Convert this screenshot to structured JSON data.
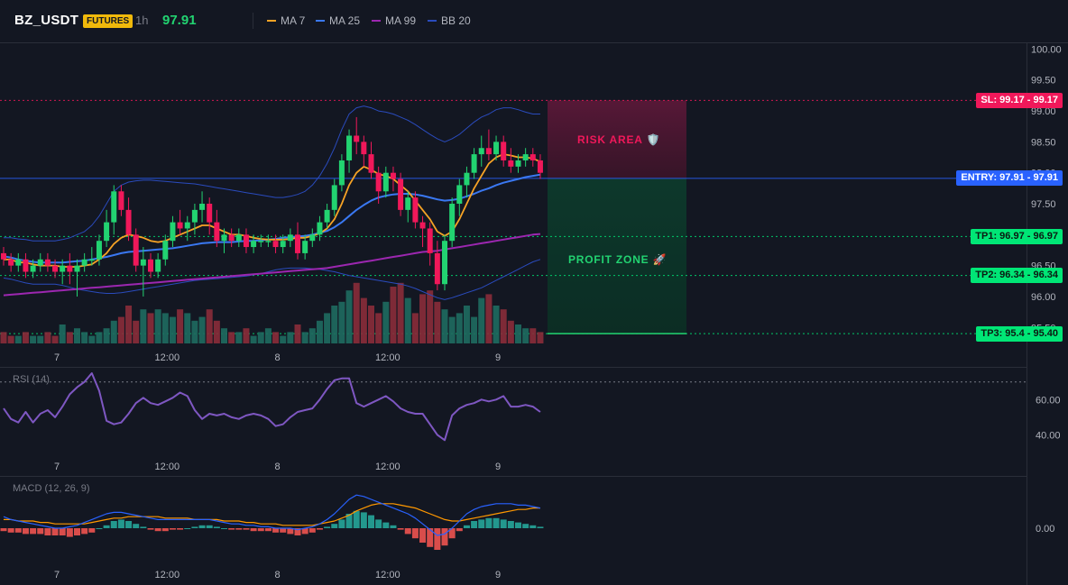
{
  "header": {
    "symbol": "BZ_USDT",
    "badge": "FUTURES",
    "timeframe": "1h",
    "price": "97.91",
    "legend": [
      {
        "label": "MA 7",
        "color": "#f7a325"
      },
      {
        "label": "MA 25",
        "color": "#3a78f2"
      },
      {
        "label": "MA 99",
        "color": "#9c27b0"
      },
      {
        "label": "BB 20",
        "color": "#2a4bbd"
      }
    ]
  },
  "price_axis": {
    "ticks": [
      "100.00",
      "99.50",
      "99.00",
      "98.50",
      "98.00",
      "97.50",
      "97.00",
      "96.50",
      "96.00",
      "95.50"
    ]
  },
  "time_axis": {
    "ticks": [
      "7",
      "12:00",
      "8",
      "12:00",
      "9"
    ]
  },
  "levels": {
    "sl": {
      "tag": "SL: 99.17 - 99.17",
      "value": 99.17,
      "color": "#f0185a"
    },
    "entry": {
      "tag": "ENTRY: 97.91 - 97.91",
      "value": 97.91,
      "color": "#2962ff"
    },
    "tp1": {
      "tag": "TP1: 96.97 - 96.97",
      "value": 96.97,
      "color": "#00e676"
    },
    "tp2": {
      "tag": "TP2: 96.34 - 96.34",
      "value": 96.34,
      "color": "#00e676"
    },
    "tp3": {
      "tag": "TP3: 95.4 - 95.40",
      "value": 95.4,
      "color": "#00e676"
    }
  },
  "zones": {
    "risk_label": "RISK AREA 🛡️",
    "profit_label": "PROFIT ZONE 🚀"
  },
  "rsi": {
    "label": "RSI (14)",
    "ticks": [
      "60.00",
      "40.00"
    ],
    "overbought": 70
  },
  "macd": {
    "label": "MACD (12, 26, 9)",
    "ticks": [
      "0.00"
    ]
  },
  "colors": {
    "up": "#22d371",
    "down": "#f0185a",
    "vol_up": "#1f6b60",
    "vol_down": "#8b2c3a"
  },
  "chart_data": {
    "type": "candlestick",
    "title": "BZ_USDT",
    "ylim": [
      95.3,
      100.1
    ],
    "ohlc": [
      [
        96.7,
        96.8,
        96.5,
        96.6
      ],
      [
        96.6,
        96.7,
        96.4,
        96.5
      ],
      [
        96.5,
        96.7,
        96.4,
        96.6
      ],
      [
        96.6,
        96.7,
        96.3,
        96.4
      ],
      [
        96.4,
        96.6,
        96.3,
        96.5
      ],
      [
        96.5,
        96.7,
        96.4,
        96.6
      ],
      [
        96.6,
        96.7,
        96.4,
        96.5
      ],
      [
        96.5,
        96.6,
        96.3,
        96.4
      ],
      [
        96.4,
        96.6,
        96.2,
        96.5
      ],
      [
        96.5,
        96.7,
        96.2,
        96.4
      ],
      [
        96.4,
        96.6,
        96.0,
        96.5
      ],
      [
        96.5,
        96.7,
        96.4,
        96.6
      ],
      [
        96.6,
        96.8,
        96.5,
        96.6
      ],
      [
        96.6,
        97.0,
        96.5,
        96.9
      ],
      [
        96.9,
        97.4,
        96.8,
        97.2
      ],
      [
        97.2,
        97.8,
        97.0,
        97.7
      ],
      [
        97.7,
        97.8,
        97.3,
        97.4
      ],
      [
        97.4,
        97.6,
        96.9,
        97.0
      ],
      [
        97.0,
        97.1,
        96.4,
        96.5
      ],
      [
        96.5,
        96.8,
        96.0,
        96.6
      ],
      [
        96.6,
        96.7,
        96.3,
        96.4
      ],
      [
        96.4,
        96.7,
        96.3,
        96.6
      ],
      [
        96.6,
        97.0,
        96.5,
        96.9
      ],
      [
        96.9,
        97.3,
        96.8,
        97.2
      ],
      [
        97.2,
        97.4,
        97.0,
        97.1
      ],
      [
        97.1,
        97.3,
        96.9,
        97.2
      ],
      [
        97.2,
        97.5,
        97.0,
        97.4
      ],
      [
        97.4,
        97.7,
        97.2,
        97.5
      ],
      [
        97.5,
        97.6,
        97.0,
        97.2
      ],
      [
        97.2,
        97.4,
        96.8,
        96.9
      ],
      [
        96.9,
        97.1,
        96.7,
        97.0
      ],
      [
        97.0,
        97.1,
        96.8,
        96.9
      ],
      [
        96.9,
        97.1,
        96.8,
        97.0
      ],
      [
        97.0,
        97.1,
        96.7,
        96.8
      ],
      [
        96.8,
        97.0,
        96.7,
        96.9
      ],
      [
        96.9,
        97.0,
        96.8,
        96.9
      ],
      [
        96.9,
        97.0,
        96.8,
        96.9
      ],
      [
        96.9,
        97.0,
        96.7,
        96.8
      ],
      [
        96.8,
        97.0,
        96.7,
        96.9
      ],
      [
        96.9,
        97.1,
        96.8,
        97.0
      ],
      [
        97.0,
        97.2,
        96.6,
        96.7
      ],
      [
        96.7,
        97.0,
        96.6,
        96.9
      ],
      [
        96.9,
        97.1,
        96.8,
        97.0
      ],
      [
        97.0,
        97.3,
        96.9,
        97.2
      ],
      [
        97.2,
        97.5,
        97.1,
        97.4
      ],
      [
        97.4,
        97.9,
        97.3,
        97.8
      ],
      [
        97.8,
        98.3,
        97.7,
        98.2
      ],
      [
        98.2,
        98.7,
        98.0,
        98.6
      ],
      [
        98.6,
        98.9,
        98.3,
        98.5
      ],
      [
        98.5,
        98.6,
        98.1,
        98.3
      ],
      [
        98.3,
        98.5,
        97.9,
        98.0
      ],
      [
        98.0,
        98.1,
        97.5,
        97.7
      ],
      [
        97.7,
        98.1,
        97.6,
        98.0
      ],
      [
        98.0,
        98.1,
        97.7,
        97.9
      ],
      [
        97.9,
        98.0,
        97.3,
        97.4
      ],
      [
        97.4,
        97.7,
        97.2,
        97.6
      ],
      [
        97.6,
        97.7,
        97.1,
        97.2
      ],
      [
        97.2,
        97.3,
        96.8,
        97.1
      ],
      [
        97.1,
        97.2,
        96.5,
        96.7
      ],
      [
        96.7,
        96.9,
        96.1,
        96.2
      ],
      [
        96.2,
        97.0,
        96.1,
        96.9
      ],
      [
        96.9,
        97.6,
        96.8,
        97.5
      ],
      [
        97.5,
        97.9,
        97.3,
        97.8
      ],
      [
        97.8,
        98.1,
        97.6,
        98.0
      ],
      [
        98.0,
        98.4,
        97.9,
        98.3
      ],
      [
        98.3,
        98.6,
        98.1,
        98.4
      ],
      [
        98.4,
        98.7,
        98.2,
        98.3
      ],
      [
        98.3,
        98.6,
        98.2,
        98.5
      ],
      [
        98.5,
        98.6,
        98.1,
        98.2
      ],
      [
        98.2,
        98.4,
        98.0,
        98.1
      ],
      [
        98.1,
        98.3,
        98.0,
        98.2
      ],
      [
        98.2,
        98.4,
        98.1,
        98.3
      ],
      [
        98.3,
        98.4,
        98.1,
        98.2
      ],
      [
        98.2,
        98.3,
        97.9,
        98.0
      ]
    ],
    "volume": [
      3,
      2,
      2,
      3,
      2,
      2,
      3,
      2,
      5,
      3,
      4,
      3,
      2,
      3,
      4,
      6,
      7,
      10,
      6,
      9,
      8,
      9,
      8,
      7,
      9,
      8,
      6,
      7,
      9,
      6,
      4,
      3,
      3,
      4,
      2,
      3,
      4,
      3,
      2,
      3,
      5,
      3,
      4,
      6,
      8,
      10,
      11,
      14,
      16,
      12,
      10,
      8,
      11,
      15,
      16,
      12,
      8,
      13,
      14,
      11,
      9,
      7,
      8,
      10,
      7,
      12,
      13,
      10,
      9,
      6,
      5,
      4,
      4,
      3
    ],
    "ma7": [
      96.6,
      96.6,
      96.55,
      96.55,
      96.52,
      96.5,
      96.5,
      96.5,
      96.48,
      96.48,
      96.48,
      96.5,
      96.52,
      96.6,
      96.7,
      96.85,
      96.95,
      97.0,
      96.98,
      96.95,
      96.9,
      96.88,
      96.9,
      96.95,
      97.0,
      97.05,
      97.1,
      97.15,
      97.15,
      97.1,
      97.05,
      97.0,
      97.0,
      96.98,
      96.95,
      96.93,
      96.92,
      96.92,
      96.92,
      96.93,
      96.95,
      96.95,
      96.98,
      97.02,
      97.1,
      97.25,
      97.5,
      97.8,
      98.0,
      98.1,
      98.05,
      97.98,
      97.95,
      97.9,
      97.8,
      97.7,
      97.55,
      97.4,
      97.25,
      97.05,
      96.98,
      97.05,
      97.25,
      97.5,
      97.75,
      97.95,
      98.15,
      98.25,
      98.3,
      98.28,
      98.25,
      98.25,
      98.23,
      98.18
    ],
    "ma25": [
      96.65,
      96.63,
      96.6,
      96.58,
      96.56,
      96.55,
      96.55,
      96.55,
      96.55,
      96.56,
      96.57,
      96.58,
      96.6,
      96.62,
      96.64,
      96.67,
      96.7,
      96.72,
      96.73,
      96.74,
      96.75,
      96.76,
      96.77,
      96.78,
      96.8,
      96.82,
      96.84,
      96.86,
      96.87,
      96.88,
      96.88,
      96.88,
      96.89,
      96.9,
      96.9,
      96.91,
      96.92,
      96.93,
      96.95,
      96.96,
      96.97,
      96.98,
      97.0,
      97.03,
      97.06,
      97.12,
      97.2,
      97.3,
      97.4,
      97.48,
      97.55,
      97.6,
      97.63,
      97.65,
      97.66,
      97.66,
      97.65,
      97.63,
      97.6,
      97.57,
      97.55,
      97.56,
      97.58,
      97.62,
      97.66,
      97.71,
      97.75,
      97.8,
      97.84,
      97.87,
      97.9,
      97.93,
      97.95,
      97.97
    ],
    "ma99": [
      96.02,
      96.03,
      96.04,
      96.05,
      96.06,
      96.07,
      96.08,
      96.09,
      96.1,
      96.11,
      96.12,
      96.13,
      96.14,
      96.15,
      96.16,
      96.17,
      96.18,
      96.19,
      96.2,
      96.21,
      96.22,
      96.23,
      96.24,
      96.25,
      96.26,
      96.27,
      96.28,
      96.29,
      96.3,
      96.31,
      96.32,
      96.33,
      96.34,
      96.35,
      96.36,
      96.37,
      96.38,
      96.39,
      96.4,
      96.41,
      96.42,
      96.43,
      96.44,
      96.45,
      96.46,
      96.48,
      96.5,
      96.52,
      96.54,
      96.56,
      96.58,
      96.6,
      96.62,
      96.64,
      96.66,
      96.68,
      96.7,
      96.72,
      96.73,
      96.74,
      96.76,
      96.78,
      96.8,
      96.82,
      96.84,
      96.86,
      96.88,
      96.9,
      96.92,
      96.94,
      96.96,
      96.98,
      97.0,
      97.01
    ],
    "bb_upper": [
      96.95,
      96.95,
      96.93,
      96.92,
      96.9,
      96.9,
      96.9,
      96.9,
      96.92,
      96.95,
      97.0,
      97.05,
      97.15,
      97.3,
      97.5,
      97.7,
      97.8,
      97.85,
      97.87,
      97.88,
      97.88,
      97.87,
      97.86,
      97.85,
      97.84,
      97.83,
      97.82,
      97.8,
      97.78,
      97.76,
      97.74,
      97.72,
      97.7,
      97.68,
      97.66,
      97.64,
      97.62,
      97.6,
      97.6,
      97.62,
      97.65,
      97.7,
      97.8,
      97.95,
      98.15,
      98.4,
      98.7,
      98.95,
      99.05,
      99.08,
      99.05,
      99.0,
      98.98,
      98.95,
      98.9,
      98.85,
      98.78,
      98.7,
      98.62,
      98.55,
      98.5,
      98.55,
      98.62,
      98.72,
      98.82,
      98.9,
      98.95,
      99.02,
      99.05,
      99.05,
      99.02,
      98.98,
      98.95,
      98.95
    ],
    "bb_lower": [
      96.3,
      96.28,
      96.25,
      96.22,
      96.2,
      96.2,
      96.2,
      96.2,
      96.18,
      96.15,
      96.12,
      96.1,
      96.08,
      96.06,
      96.05,
      96.05,
      96.06,
      96.08,
      96.1,
      96.12,
      96.14,
      96.16,
      96.18,
      96.2,
      96.22,
      96.24,
      96.26,
      96.27,
      96.28,
      96.29,
      96.3,
      96.31,
      96.32,
      96.33,
      96.35,
      96.37,
      96.4,
      96.43,
      96.45,
      96.46,
      96.46,
      96.46,
      96.45,
      96.44,
      96.42,
      96.4,
      96.37,
      96.34,
      96.32,
      96.3,
      96.28,
      96.26,
      96.24,
      96.22,
      96.2,
      96.17,
      96.13,
      96.08,
      96.03,
      95.98,
      95.95,
      95.98,
      96.02,
      96.06,
      96.1,
      96.14,
      96.2,
      96.26,
      96.32,
      96.38,
      96.44,
      96.5,
      96.56,
      96.6
    ],
    "rsi": [
      55,
      49,
      47,
      53,
      47,
      52,
      54,
      50,
      56,
      63,
      67,
      70,
      75,
      65,
      48,
      46,
      47,
      52,
      58,
      61,
      58,
      57,
      59,
      61,
      64,
      62,
      54,
      49,
      52,
      51,
      52,
      50,
      49,
      51,
      52,
      51,
      49,
      45,
      46,
      50,
      53,
      54,
      55,
      60,
      66,
      71,
      72,
      72,
      58,
      56,
      58,
      60,
      62,
      59,
      55,
      53,
      52,
      52,
      46,
      40,
      37,
      51,
      55,
      57,
      58,
      60,
      59,
      60,
      62,
      56,
      56,
      57,
      56,
      53
    ],
    "macd_hist": [
      -0.02,
      -0.03,
      -0.03,
      -0.04,
      -0.04,
      -0.04,
      -0.05,
      -0.05,
      -0.05,
      -0.06,
      -0.05,
      -0.04,
      -0.03,
      0.0,
      0.02,
      0.05,
      0.06,
      0.05,
      0.03,
      0.01,
      -0.01,
      -0.02,
      -0.02,
      -0.01,
      -0.01,
      0.0,
      0.01,
      0.02,
      0.02,
      0.01,
      0.0,
      -0.01,
      -0.01,
      -0.01,
      -0.02,
      -0.02,
      -0.02,
      -0.03,
      -0.03,
      -0.04,
      -0.05,
      -0.04,
      -0.03,
      -0.01,
      0.01,
      0.03,
      0.06,
      0.1,
      0.12,
      0.11,
      0.09,
      0.06,
      0.04,
      0.02,
      -0.01,
      -0.04,
      -0.07,
      -0.1,
      -0.13,
      -0.15,
      -0.12,
      -0.07,
      -0.02,
      0.02,
      0.05,
      0.06,
      0.07,
      0.07,
      0.06,
      0.05,
      0.04,
      0.03,
      0.02,
      0.01
    ],
    "macd_line": [
      0.08,
      0.06,
      0.05,
      0.04,
      0.03,
      0.02,
      0.01,
      0.0,
      0.0,
      0.01,
      0.02,
      0.04,
      0.06,
      0.08,
      0.1,
      0.11,
      0.11,
      0.1,
      0.09,
      0.08,
      0.07,
      0.06,
      0.06,
      0.06,
      0.06,
      0.06,
      0.06,
      0.06,
      0.06,
      0.05,
      0.04,
      0.03,
      0.03,
      0.02,
      0.02,
      0.01,
      0.01,
      0.0,
      0.0,
      0.0,
      -0.01,
      0.0,
      0.01,
      0.03,
      0.06,
      0.1,
      0.15,
      0.2,
      0.23,
      0.22,
      0.2,
      0.18,
      0.16,
      0.14,
      0.12,
      0.1,
      0.07,
      0.03,
      -0.01,
      -0.05,
      -0.04,
      0.0,
      0.05,
      0.1,
      0.13,
      0.15,
      0.16,
      0.17,
      0.17,
      0.17,
      0.16,
      0.16,
      0.15,
      0.14
    ],
    "macd_signal": [
      0.06,
      0.06,
      0.05,
      0.05,
      0.05,
      0.04,
      0.04,
      0.03,
      0.03,
      0.03,
      0.03,
      0.03,
      0.04,
      0.05,
      0.06,
      0.07,
      0.07,
      0.08,
      0.08,
      0.08,
      0.08,
      0.08,
      0.07,
      0.07,
      0.07,
      0.07,
      0.06,
      0.06,
      0.06,
      0.06,
      0.05,
      0.05,
      0.05,
      0.04,
      0.04,
      0.03,
      0.03,
      0.03,
      0.02,
      0.02,
      0.02,
      0.02,
      0.02,
      0.03,
      0.04,
      0.05,
      0.07,
      0.09,
      0.12,
      0.14,
      0.16,
      0.17,
      0.17,
      0.17,
      0.16,
      0.15,
      0.14,
      0.12,
      0.1,
      0.08,
      0.06,
      0.05,
      0.05,
      0.06,
      0.07,
      0.08,
      0.09,
      0.1,
      0.11,
      0.12,
      0.13,
      0.13,
      0.14,
      0.14
    ]
  }
}
